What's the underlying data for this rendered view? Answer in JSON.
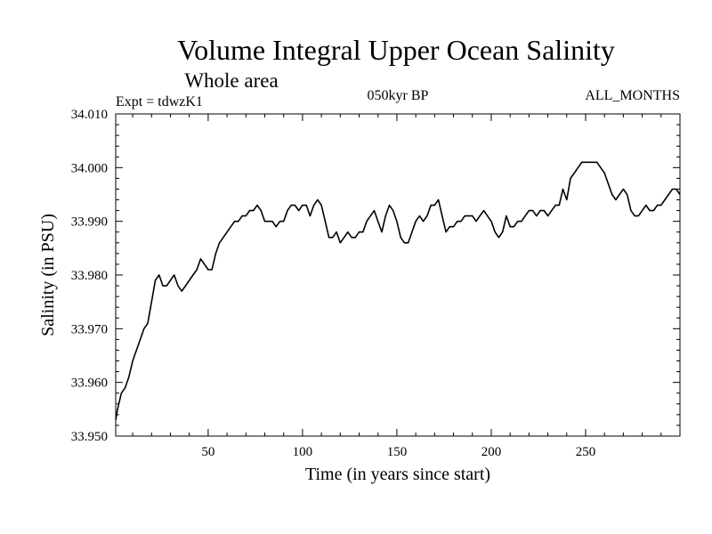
{
  "chart_data": {
    "type": "line",
    "title": "Volume Integral Upper Ocean Salinity",
    "subtitle": "Whole area",
    "annotations": {
      "experiment": "Expt = tdwzK1",
      "period": "050kyr BP",
      "months": "ALL_MONTHS"
    },
    "xlabel": "Time (in years since start)",
    "ylabel": "Salinity (in PSU)",
    "xlim": [
      1,
      300
    ],
    "ylim": [
      33.95,
      34.01
    ],
    "xticks": [
      50,
      100,
      150,
      200,
      250
    ],
    "xtick_labels": [
      "50",
      "100",
      "150",
      "200",
      "250"
    ],
    "yticks": [
      33.95,
      33.96,
      33.97,
      33.98,
      33.99,
      34.0,
      34.01
    ],
    "ytick_labels": [
      "33.950",
      "33.960",
      "33.970",
      "33.980",
      "33.990",
      "34.000",
      "34.010"
    ],
    "grid": false,
    "series": [
      {
        "name": "Salinity",
        "x": [
          1,
          2,
          4,
          6,
          8,
          10,
          12,
          14,
          16,
          18,
          20,
          22,
          24,
          26,
          28,
          30,
          32,
          34,
          36,
          38,
          40,
          42,
          44,
          46,
          48,
          50,
          52,
          54,
          56,
          58,
          60,
          62,
          64,
          66,
          68,
          70,
          72,
          74,
          76,
          78,
          80,
          82,
          84,
          86,
          88,
          90,
          92,
          94,
          96,
          98,
          100,
          102,
          104,
          106,
          108,
          110,
          112,
          114,
          116,
          118,
          120,
          122,
          124,
          126,
          128,
          130,
          132,
          134,
          136,
          138,
          140,
          142,
          144,
          146,
          148,
          150,
          152,
          154,
          156,
          158,
          160,
          162,
          164,
          166,
          168,
          170,
          172,
          174,
          176,
          178,
          180,
          182,
          184,
          186,
          188,
          190,
          192,
          194,
          196,
          198,
          200,
          202,
          204,
          206,
          208,
          210,
          212,
          214,
          216,
          218,
          220,
          222,
          224,
          226,
          228,
          230,
          232,
          234,
          236,
          238,
          240,
          242,
          244,
          246,
          248,
          250,
          252,
          254,
          256,
          258,
          260,
          262,
          264,
          266,
          268,
          270,
          272,
          274,
          276,
          278,
          280,
          282,
          284,
          286,
          288,
          290,
          292,
          294,
          296,
          298,
          300
        ],
        "values": [
          33.953,
          33.955,
          33.958,
          33.959,
          33.961,
          33.964,
          33.966,
          33.968,
          33.97,
          33.971,
          33.975,
          33.979,
          33.98,
          33.978,
          33.978,
          33.979,
          33.98,
          33.978,
          33.977,
          33.978,
          33.979,
          33.98,
          33.981,
          33.983,
          33.982,
          33.981,
          33.981,
          33.984,
          33.986,
          33.987,
          33.988,
          33.989,
          33.99,
          33.99,
          33.991,
          33.991,
          33.992,
          33.992,
          33.993,
          33.992,
          33.99,
          33.99,
          33.99,
          33.989,
          33.99,
          33.99,
          33.992,
          33.993,
          33.993,
          33.992,
          33.993,
          33.993,
          33.991,
          33.993,
          33.994,
          33.993,
          33.99,
          33.987,
          33.987,
          33.988,
          33.986,
          33.987,
          33.988,
          33.987,
          33.987,
          33.988,
          33.988,
          33.99,
          33.991,
          33.992,
          33.99,
          33.988,
          33.991,
          33.993,
          33.992,
          33.99,
          33.987,
          33.986,
          33.986,
          33.988,
          33.99,
          33.991,
          33.99,
          33.991,
          33.993,
          33.993,
          33.994,
          33.991,
          33.988,
          33.989,
          33.989,
          33.99,
          33.99,
          33.991,
          33.991,
          33.991,
          33.99,
          33.991,
          33.992,
          33.991,
          33.99,
          33.988,
          33.987,
          33.988,
          33.991,
          33.989,
          33.989,
          33.99,
          33.99,
          33.991,
          33.992,
          33.992,
          33.991,
          33.992,
          33.992,
          33.991,
          33.992,
          33.993,
          33.993,
          33.996,
          33.994,
          33.998,
          33.999,
          34.0,
          34.001,
          34.001,
          34.001,
          34.001,
          34.001,
          34.0,
          33.999,
          33.997,
          33.995,
          33.994,
          33.995,
          33.996,
          33.995,
          33.992,
          33.991,
          33.991,
          33.992,
          33.993,
          33.992,
          33.992,
          33.993,
          33.993,
          33.994,
          33.995,
          33.996,
          33.996,
          33.995
        ]
      }
    ]
  }
}
